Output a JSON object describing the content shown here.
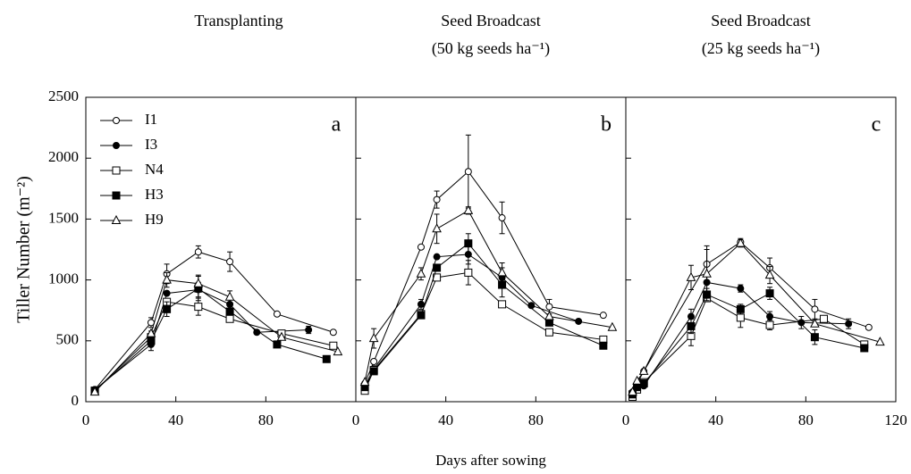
{
  "chart_data": [
    {
      "type": "line",
      "title": "Transplanting",
      "annotation": "a",
      "ylabel": "Tiller Number (m⁻²)",
      "xlim": [
        0,
        120
      ],
      "xticks": [
        0,
        40,
        80
      ],
      "ylim": [
        0,
        2500
      ],
      "yticks": [
        0,
        500,
        1000,
        1500,
        2000,
        2500
      ],
      "legend": "upper left",
      "series": [
        {
          "name": "I1",
          "marker": "circle-open",
          "x": [
            4,
            29,
            36,
            50,
            64,
            85,
            110
          ],
          "values": [
            100,
            650,
            1050,
            1230,
            1150,
            720,
            570
          ],
          "errors": [
            null,
            40,
            80,
            50,
            80,
            null,
            null
          ]
        },
        {
          "name": "I3",
          "marker": "circle-filled",
          "x": [
            4,
            29,
            36,
            50,
            64,
            76,
            99
          ],
          "values": [
            100,
            470,
            890,
            920,
            800,
            570,
            590
          ],
          "errors": [
            null,
            null,
            null,
            60,
            50,
            null,
            30
          ]
        },
        {
          "name": "N4",
          "marker": "square-open",
          "x": [
            4,
            29,
            36,
            50,
            64,
            87,
            110
          ],
          "values": [
            90,
            530,
            820,
            780,
            680,
            560,
            460
          ],
          "errors": [
            null,
            null,
            null,
            70,
            null,
            null,
            null
          ]
        },
        {
          "name": "H3",
          "marker": "square-filled",
          "x": [
            4,
            29,
            36,
            50,
            64,
            85,
            107
          ],
          "values": [
            90,
            500,
            760,
            930,
            740,
            470,
            350
          ],
          "errors": [
            null,
            80,
            60,
            100,
            null,
            null,
            null
          ]
        },
        {
          "name": "H9",
          "marker": "triangle-open",
          "x": [
            4,
            29,
            36,
            50,
            64,
            87,
            112
          ],
          "values": [
            80,
            560,
            1000,
            970,
            860,
            530,
            410
          ],
          "errors": [
            null,
            null,
            60,
            70,
            50,
            null,
            null
          ]
        }
      ]
    },
    {
      "type": "line",
      "title": "Seed Broadcast",
      "subtitle": "(50 kg seeds ha⁻¹)",
      "annotation": "b",
      "xlabel": "Days after sowing",
      "xlim": [
        0,
        120
      ],
      "xticks": [
        0,
        40,
        80
      ],
      "ylim": [
        0,
        2500
      ],
      "series": [
        {
          "marker": "circle-open",
          "x": [
            4,
            8,
            29,
            36,
            50,
            65,
            86,
            110
          ],
          "values": [
            150,
            330,
            1270,
            1660,
            1890,
            1510,
            780,
            710
          ],
          "errors": [
            null,
            null,
            null,
            70,
            300,
            130,
            60,
            null
          ]
        },
        {
          "marker": "circle-filled",
          "x": [
            4,
            8,
            29,
            36,
            50,
            65,
            78,
            99
          ],
          "values": [
            130,
            270,
            800,
            1190,
            1210,
            1020,
            790,
            660
          ],
          "errors": [
            null,
            null,
            40,
            null,
            80,
            80,
            null,
            null
          ]
        },
        {
          "marker": "square-open",
          "x": [
            4,
            8,
            29,
            36,
            50,
            65,
            86,
            110
          ],
          "values": [
            90,
            260,
            720,
            1020,
            1060,
            800,
            570,
            510
          ],
          "errors": [
            null,
            null,
            null,
            null,
            100,
            null,
            null,
            null
          ]
        },
        {
          "marker": "square-filled",
          "x": [
            4,
            8,
            29,
            36,
            50,
            65,
            86,
            110
          ],
          "values": [
            120,
            250,
            710,
            1100,
            1300,
            960,
            650,
            460
          ],
          "errors": [
            null,
            null,
            null,
            null,
            80,
            100,
            null,
            null
          ]
        },
        {
          "marker": "triangle-open",
          "x": [
            4,
            8,
            29,
            36,
            50,
            65,
            86,
            114
          ],
          "values": [
            160,
            520,
            1050,
            1420,
            1570,
            1060,
            700,
            610
          ],
          "errors": [
            null,
            80,
            50,
            120,
            30,
            80,
            null,
            null
          ]
        }
      ]
    },
    {
      "type": "line",
      "title": "Seed Broadcast",
      "subtitle": "(25 kg seeds ha⁻¹)",
      "annotation": "c",
      "xlim": [
        0,
        120
      ],
      "xticks": [
        0,
        40,
        80,
        120
      ],
      "ylim": [
        0,
        2500
      ],
      "series": [
        {
          "marker": "circle-open",
          "x": [
            3,
            5,
            8,
            36,
            51,
            64,
            84,
            108
          ],
          "values": [
            80,
            150,
            250,
            1130,
            1310,
            1100,
            760,
            610
          ],
          "errors": [
            null,
            null,
            null,
            150,
            30,
            80,
            80,
            null
          ]
        },
        {
          "marker": "circle-filled",
          "x": [
            3,
            5,
            8,
            29,
            36,
            51,
            64,
            78,
            99
          ],
          "values": [
            60,
            140,
            130,
            700,
            980,
            930,
            700,
            650,
            640
          ],
          "errors": [
            null,
            null,
            null,
            60,
            null,
            30,
            40,
            50,
            40
          ]
        },
        {
          "marker": "square-open",
          "x": [
            3,
            5,
            8,
            29,
            36,
            51,
            64,
            88,
            106
          ],
          "values": [
            40,
            100,
            160,
            540,
            850,
            690,
            630,
            680,
            470
          ],
          "errors": [
            null,
            null,
            null,
            80,
            null,
            80,
            40,
            null,
            null
          ]
        },
        {
          "marker": "square-filled",
          "x": [
            3,
            5,
            8,
            29,
            36,
            51,
            64,
            84,
            106
          ],
          "values": [
            60,
            120,
            150,
            620,
            880,
            760,
            890,
            530,
            440
          ],
          "errors": [
            null,
            null,
            null,
            60,
            50,
            40,
            50,
            60,
            null
          ]
        },
        {
          "marker": "triangle-open",
          "x": [
            3,
            5,
            8,
            29,
            36,
            51,
            64,
            84,
            113
          ],
          "values": [
            80,
            170,
            250,
            1020,
            1050,
            1300,
            1040,
            640,
            490
          ],
          "errors": [
            null,
            null,
            null,
            100,
            200,
            30,
            70,
            null,
            null
          ]
        }
      ]
    }
  ]
}
